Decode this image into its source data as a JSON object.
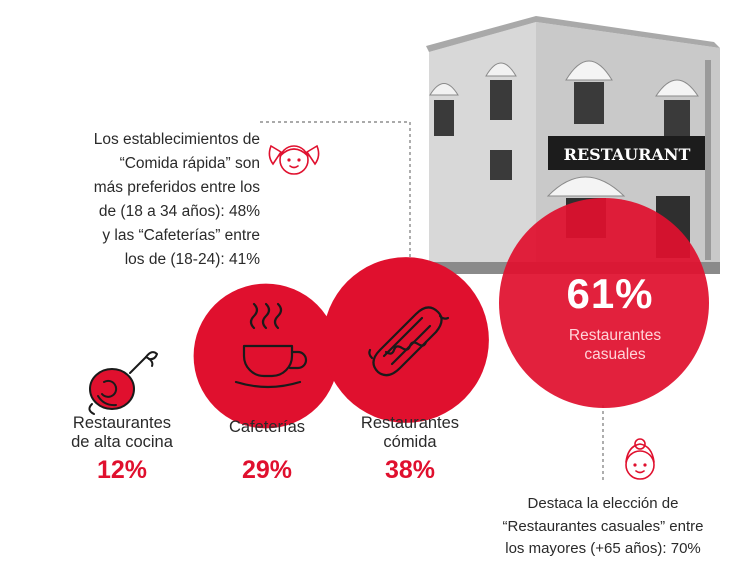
{
  "chart_data": {
    "type": "bubble",
    "unit": "%",
    "categories": [
      {
        "label_lines": [
          "Restaurantes",
          "de alta cocina"
        ],
        "value": 12,
        "value_label": "12%",
        "icon": "meat-leg-icon"
      },
      {
        "label_lines": [
          "Cafeterías"
        ],
        "value": 29,
        "value_label": "29%",
        "icon": "coffee-cup-icon"
      },
      {
        "label_lines": [
          "Restaurantes",
          "cómida"
        ],
        "value": 38,
        "value_label": "38%",
        "icon": "hotdog-icon"
      },
      {
        "label_lines": [
          "Restaurantes",
          "casuales"
        ],
        "value": 61,
        "value_label": "61%",
        "icon": "restaurant-building-image"
      }
    ],
    "annotations": [
      {
        "lines": [
          "Los establecimientos de",
          "“Comida rápida” son",
          "más preferidos entre los",
          "de (18 a 34 años): 48%",
          "y las “Cafeterías” entre",
          "los de (18-24): 41%"
        ],
        "icon": "girl-face-icon"
      },
      {
        "lines": [
          "Destaca la elección de",
          "“Restaurantes casuales” entre",
          "los mayores (+65 años): 70%"
        ],
        "icon": "elderly-woman-icon"
      }
    ],
    "building_sign": "RESTAURANT"
  },
  "colors": {
    "accent": "#e0102e",
    "text": "#2a2a2a",
    "line": "#777777",
    "building": "#bdbdbd"
  }
}
